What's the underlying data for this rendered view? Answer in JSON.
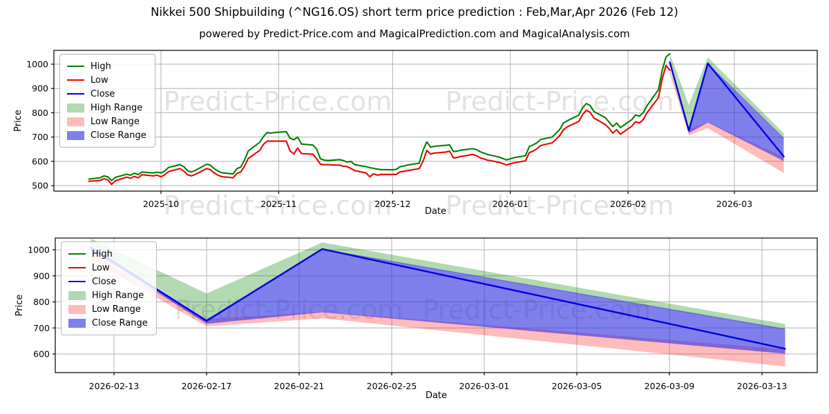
{
  "figure": {
    "title": "Nikkei 500 Shipbuilding (^NG16.OS) short term price prediction : Feb,Mar,Apr 2026 (Feb 12)",
    "subtitle": "powered by Predict-Price.com and MagicalPrediction.com and MagicalAnalysis.com",
    "watermark_text": "Predict-Price.com",
    "colors": {
      "high_line": "#008000",
      "low_line": "#ee0000",
      "close_line": "#0000dd",
      "high_range_fill": "rgba(0,128,0,0.30)",
      "low_range_fill": "rgba(255,30,30,0.30)",
      "close_range_fill": "rgba(50,50,225,0.62)",
      "grid": "#b0b0b0",
      "watermark": "#cccccc"
    }
  },
  "legend": [
    {
      "label": "High",
      "type": "line",
      "color_key": "high_line"
    },
    {
      "label": "Low",
      "type": "line",
      "color_key": "low_line"
    },
    {
      "label": "Close",
      "type": "line",
      "color_key": "close_line"
    },
    {
      "label": "High Range",
      "type": "patch",
      "color_key": "high_range_fill"
    },
    {
      "label": "Low Range",
      "type": "patch",
      "color_key": "low_range_fill"
    },
    {
      "label": "Close Range",
      "type": "patch",
      "color_key": "close_range_fill"
    }
  ],
  "chart_data": [
    {
      "type": "line",
      "title": "",
      "xlabel": "Date",
      "ylabel": "Price",
      "grid": true,
      "legend_position": "upper left",
      "ylim": [
        477,
        1057
      ],
      "xlim": [
        "2025-09-03",
        "2026-03-23"
      ],
      "yticks": [
        500,
        600,
        700,
        800,
        900,
        1000
      ],
      "xticks": {
        "labels": [
          "2025-10",
          "2025-11",
          "2025-12",
          "2026-01",
          "2026-02",
          "2026-03"
        ],
        "dates": [
          "2025-10-01",
          "2025-11-01",
          "2025-12-01",
          "2026-01-01",
          "2026-02-01",
          "2026-03-01"
        ]
      },
      "series": [
        {
          "name": "High",
          "kind": "line",
          "color_key": "high_line",
          "x": [
            "2025-09-12",
            "2025-09-15",
            "2025-09-16",
            "2025-09-17",
            "2025-09-18",
            "2025-09-19",
            "2025-09-22",
            "2025-09-23",
            "2025-09-24",
            "2025-09-25",
            "2025-09-26",
            "2025-09-29",
            "2025-09-30",
            "2025-10-01",
            "2025-10-02",
            "2025-10-03",
            "2025-10-06",
            "2025-10-07",
            "2025-10-08",
            "2025-10-09",
            "2025-10-10",
            "2025-10-13",
            "2025-10-14",
            "2025-10-15",
            "2025-10-16",
            "2025-10-17",
            "2025-10-20",
            "2025-10-21",
            "2025-10-22",
            "2025-10-23",
            "2025-10-24",
            "2025-10-27",
            "2025-10-28",
            "2025-10-29",
            "2025-10-30",
            "2025-10-31",
            "2025-11-03",
            "2025-11-04",
            "2025-11-05",
            "2025-11-06",
            "2025-11-07",
            "2025-11-10",
            "2025-11-11",
            "2025-11-12",
            "2025-11-13",
            "2025-11-14",
            "2025-11-17",
            "2025-11-18",
            "2025-11-19",
            "2025-11-20",
            "2025-11-21",
            "2025-11-24",
            "2025-11-25",
            "2025-11-26",
            "2025-11-27",
            "2025-11-28",
            "2025-12-01",
            "2025-12-02",
            "2025-12-03",
            "2025-12-04",
            "2025-12-05",
            "2025-12-08",
            "2025-12-09",
            "2025-12-10",
            "2025-12-11",
            "2025-12-12",
            "2025-12-15",
            "2025-12-16",
            "2025-12-17",
            "2025-12-18",
            "2025-12-19",
            "2025-12-22",
            "2025-12-23",
            "2025-12-24",
            "2025-12-26",
            "2025-12-29",
            "2025-12-30",
            "2025-12-31",
            "2026-01-02",
            "2026-01-05",
            "2026-01-06",
            "2026-01-07",
            "2026-01-08",
            "2026-01-09",
            "2026-01-12",
            "2026-01-13",
            "2026-01-14",
            "2026-01-15",
            "2026-01-16",
            "2026-01-19",
            "2026-01-20",
            "2026-01-21",
            "2026-01-22",
            "2026-01-23",
            "2026-01-26",
            "2026-01-27",
            "2026-01-28",
            "2026-01-29",
            "2026-01-30",
            "2026-02-02",
            "2026-02-03",
            "2026-02-04",
            "2026-02-05",
            "2026-02-06",
            "2026-02-09",
            "2026-02-10",
            "2026-02-11",
            "2026-02-12"
          ],
          "y": [
            527,
            532,
            540,
            536,
            521,
            534,
            547,
            543,
            551,
            545,
            556,
            552,
            555,
            552,
            560,
            575,
            586,
            578,
            561,
            556,
            562,
            588,
            584,
            570,
            560,
            553,
            548,
            570,
            576,
            605,
            643,
            678,
            702,
            719,
            716,
            719,
            722,
            695,
            689,
            700,
            671,
            667,
            650,
            610,
            605,
            603,
            607,
            603,
            597,
            600,
            586,
            578,
            574,
            571,
            568,
            566,
            565,
            567,
            578,
            581,
            585,
            592,
            645,
            680,
            658,
            662,
            666,
            668,
            640,
            642,
            646,
            652,
            649,
            640,
            628,
            618,
            612,
            606,
            615,
            623,
            661,
            668,
            676,
            690,
            700,
            715,
            731,
            758,
            767,
            790,
            820,
            838,
            830,
            805,
            780,
            762,
            743,
            758,
            739,
            772,
            791,
            786,
            800,
            829,
            895,
            975,
            1030,
            1043
          ]
        },
        {
          "name": "Low",
          "kind": "line",
          "color_key": "low_line",
          "x": [
            "2025-09-12",
            "2025-09-15",
            "2025-09-16",
            "2025-09-17",
            "2025-09-18",
            "2025-09-19",
            "2025-09-22",
            "2025-09-23",
            "2025-09-24",
            "2025-09-25",
            "2025-09-26",
            "2025-09-29",
            "2025-09-30",
            "2025-10-01",
            "2025-10-02",
            "2025-10-03",
            "2025-10-06",
            "2025-10-07",
            "2025-10-08",
            "2025-10-09",
            "2025-10-10",
            "2025-10-13",
            "2025-10-14",
            "2025-10-15",
            "2025-10-16",
            "2025-10-17",
            "2025-10-20",
            "2025-10-21",
            "2025-10-22",
            "2025-10-23",
            "2025-10-24",
            "2025-10-27",
            "2025-10-28",
            "2025-10-29",
            "2025-10-30",
            "2025-10-31",
            "2025-11-03",
            "2025-11-04",
            "2025-11-05",
            "2025-11-06",
            "2025-11-07",
            "2025-11-10",
            "2025-11-11",
            "2025-11-12",
            "2025-11-13",
            "2025-11-14",
            "2025-11-17",
            "2025-11-18",
            "2025-11-19",
            "2025-11-20",
            "2025-11-21",
            "2025-11-24",
            "2025-11-25",
            "2025-11-26",
            "2025-11-27",
            "2025-11-28",
            "2025-12-01",
            "2025-12-02",
            "2025-12-03",
            "2025-12-04",
            "2025-12-05",
            "2025-12-08",
            "2025-12-09",
            "2025-12-10",
            "2025-12-11",
            "2025-12-12",
            "2025-12-15",
            "2025-12-16",
            "2025-12-17",
            "2025-12-18",
            "2025-12-19",
            "2025-12-22",
            "2025-12-23",
            "2025-12-24",
            "2025-12-26",
            "2025-12-29",
            "2025-12-30",
            "2025-12-31",
            "2026-01-02",
            "2026-01-05",
            "2026-01-06",
            "2026-01-07",
            "2026-01-08",
            "2026-01-09",
            "2026-01-12",
            "2026-01-13",
            "2026-01-14",
            "2026-01-15",
            "2026-01-16",
            "2026-01-19",
            "2026-01-20",
            "2026-01-21",
            "2026-01-22",
            "2026-01-23",
            "2026-01-26",
            "2026-01-27",
            "2026-01-28",
            "2026-01-29",
            "2026-01-30",
            "2026-02-02",
            "2026-02-03",
            "2026-02-04",
            "2026-02-05",
            "2026-02-06",
            "2026-02-09",
            "2026-02-10",
            "2026-02-11",
            "2026-02-12"
          ],
          "y": [
            518,
            521,
            528,
            524,
            505,
            520,
            535,
            530,
            538,
            532,
            545,
            540,
            543,
            536,
            545,
            558,
            570,
            560,
            545,
            540,
            546,
            570,
            566,
            552,
            543,
            537,
            532,
            550,
            556,
            580,
            612,
            645,
            670,
            683,
            683,
            683,
            683,
            643,
            630,
            655,
            632,
            629,
            610,
            588,
            586,
            586,
            584,
            580,
            578,
            571,
            562,
            552,
            536,
            549,
            543,
            546,
            546,
            546,
            557,
            559,
            562,
            570,
            600,
            645,
            630,
            634,
            638,
            642,
            614,
            616,
            620,
            628,
            624,
            615,
            605,
            596,
            591,
            585,
            594,
            602,
            636,
            642,
            652,
            665,
            676,
            690,
            706,
            730,
            742,
            764,
            792,
            810,
            802,
            778,
            752,
            736,
            716,
            730,
            712,
            745,
            763,
            758,
            772,
            800,
            862,
            940,
            995,
            975
          ]
        },
        {
          "name": "Close",
          "kind": "line",
          "color_key": "close_line",
          "x": [
            "2026-02-12",
            "2026-02-17",
            "2026-02-22",
            "2026-03-14"
          ],
          "y": [
            1008,
            727,
            1003,
            620
          ]
        },
        {
          "name": "High Range",
          "kind": "band",
          "color_key": "high_range_fill",
          "x": [
            "2026-02-12",
            "2026-02-17",
            "2026-02-22",
            "2026-03-14"
          ],
          "upper": [
            1043,
            832,
            1028,
            715
          ],
          "lower": [
            1020,
            733,
            1000,
            692
          ]
        },
        {
          "name": "Low Range",
          "kind": "band",
          "color_key": "low_range_fill",
          "x": [
            "2026-02-12",
            "2026-02-17",
            "2026-02-22",
            "2026-03-14"
          ],
          "upper": [
            985,
            733,
            762,
            618
          ],
          "lower": [
            962,
            706,
            737,
            552
          ]
        },
        {
          "name": "Close Range",
          "kind": "band",
          "color_key": "close_range_fill",
          "x": [
            "2026-02-12",
            "2026-02-17",
            "2026-02-22",
            "2026-03-14"
          ],
          "upper": [
            1015,
            733,
            1003,
            697
          ],
          "lower": [
            998,
            716,
            760,
            601
          ]
        }
      ]
    },
    {
      "type": "line",
      "title": "",
      "xlabel": "Date",
      "ylabel": "Price",
      "grid": true,
      "legend_position": "upper left",
      "ylim": [
        528,
        1045
      ],
      "xlim": [
        "2026-02-11",
        "2026-03-15"
      ],
      "yticks": [
        600,
        700,
        800,
        900,
        1000
      ],
      "xticks": {
        "labels": [
          "2026-02-13",
          "2026-02-17",
          "2026-02-21",
          "2026-02-25",
          "2026-03-01",
          "2026-03-05",
          "2026-03-09",
          "2026-03-13"
        ],
        "dates": [
          "2026-02-13",
          "2026-02-17",
          "2026-02-21",
          "2026-02-25",
          "2026-03-01",
          "2026-03-05",
          "2026-03-09",
          "2026-03-13"
        ]
      },
      "series": [
        {
          "name": "Close",
          "kind": "line",
          "color_key": "close_line",
          "x": [
            "2026-02-12",
            "2026-02-17",
            "2026-02-22",
            "2026-03-14"
          ],
          "y": [
            1008,
            727,
            1003,
            620
          ]
        },
        {
          "name": "High Range",
          "kind": "band",
          "color_key": "high_range_fill",
          "x": [
            "2026-02-12",
            "2026-02-17",
            "2026-02-22",
            "2026-03-14"
          ],
          "upper": [
            1043,
            832,
            1028,
            715
          ],
          "lower": [
            1020,
            733,
            1000,
            692
          ]
        },
        {
          "name": "Low Range",
          "kind": "band",
          "color_key": "low_range_fill",
          "x": [
            "2026-02-12",
            "2026-02-17",
            "2026-02-22",
            "2026-03-14"
          ],
          "upper": [
            985,
            733,
            762,
            618
          ],
          "lower": [
            962,
            706,
            737,
            552
          ]
        },
        {
          "name": "Close Range",
          "kind": "band",
          "color_key": "close_range_fill",
          "x": [
            "2026-02-12",
            "2026-02-17",
            "2026-02-22",
            "2026-03-14"
          ],
          "upper": [
            1015,
            733,
            1003,
            697
          ],
          "lower": [
            998,
            716,
            760,
            601
          ]
        }
      ]
    }
  ]
}
